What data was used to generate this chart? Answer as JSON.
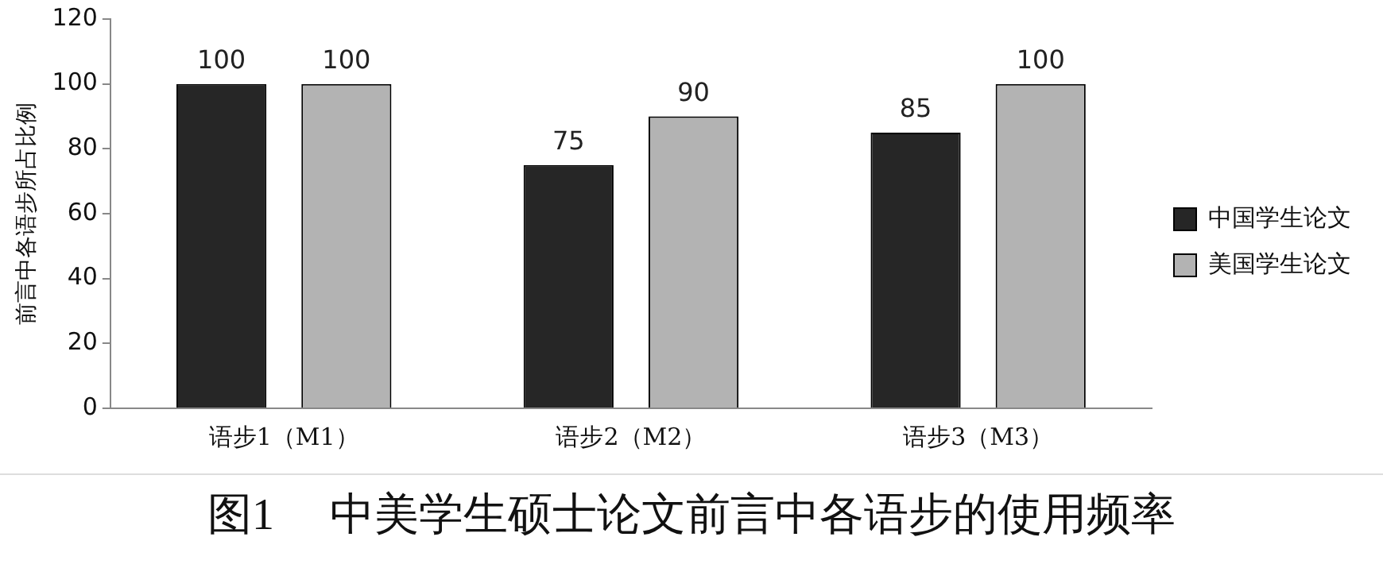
{
  "chart_data": {
    "type": "bar",
    "title": "图1　 中美学生硕士论文前言中各语步的使用频率",
    "ylabel": "前言中各语步所占比例",
    "categories": [
      "语步1（M1）",
      "语步2（M2）",
      "语步3（M3）"
    ],
    "series": [
      {
        "name": "中国学生论文",
        "color": "#262626",
        "values": [
          100,
          75,
          85
        ]
      },
      {
        "name": "美国学生论文",
        "color": "#b3b3b3",
        "values": [
          100,
          90,
          100
        ]
      }
    ],
    "ylim": [
      0,
      120
    ],
    "yticks": [
      0,
      20,
      40,
      60,
      80,
      100,
      120
    ],
    "grid": false,
    "legend": "right",
    "data_labels": true
  }
}
